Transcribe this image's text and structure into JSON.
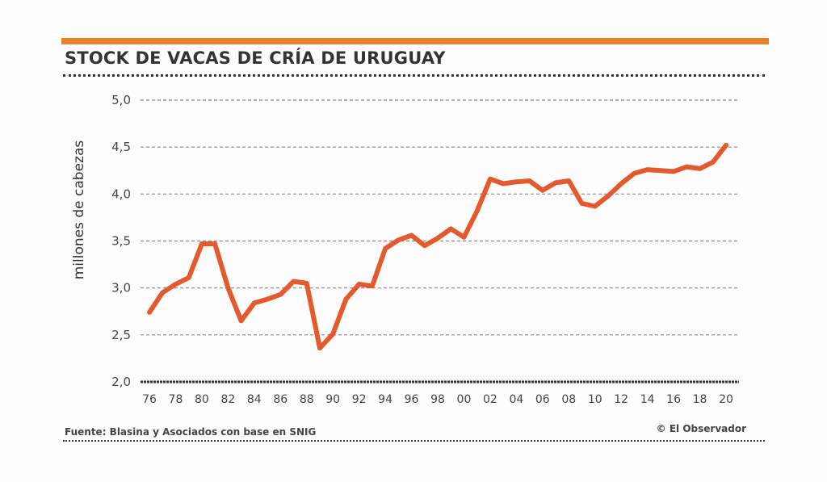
{
  "header": {
    "title": "STOCK DE VACAS DE CRÍA DE URUGUAY",
    "accent_color": "#e8822a"
  },
  "footer": {
    "source": "Fuente: Blasina y Asociados con base en SNIG",
    "credit": "© El Observador"
  },
  "chart_data": {
    "type": "line",
    "title": "STOCK DE VACAS DE CRÍA DE URUGUAY",
    "xlabel": "",
    "ylabel": "millones de cabezas",
    "ylim": [
      2.0,
      5.0
    ],
    "xlim": [
      1976,
      2020
    ],
    "grid": true,
    "line_color": "#e35a2e",
    "yticks": [
      "2,0",
      "2,5",
      "3,0",
      "3,5",
      "4,0",
      "4,5",
      "5,0"
    ],
    "ytick_values": [
      2.0,
      2.5,
      3.0,
      3.5,
      4.0,
      4.5,
      5.0
    ],
    "xticks": [
      "76",
      "78",
      "80",
      "82",
      "84",
      "86",
      "88",
      "90",
      "92",
      "94",
      "96",
      "98",
      "00",
      "02",
      "04",
      "06",
      "08",
      "10",
      "12",
      "14",
      "16",
      "18",
      "20"
    ],
    "xtick_values": [
      1976,
      1978,
      1980,
      1982,
      1984,
      1986,
      1988,
      1990,
      1992,
      1994,
      1996,
      1998,
      2000,
      2002,
      2004,
      2006,
      2008,
      2010,
      2012,
      2014,
      2016,
      2018,
      2020
    ],
    "series": [
      {
        "name": "Stock de vacas de cría",
        "x": [
          1976,
          1977,
          1978,
          1979,
          1980,
          1981,
          1982,
          1983,
          1984,
          1985,
          1986,
          1987,
          1988,
          1989,
          1990,
          1991,
          1992,
          1993,
          1994,
          1995,
          1996,
          1997,
          1998,
          1999,
          2000,
          2001,
          2002,
          2003,
          2004,
          2005,
          2006,
          2007,
          2008,
          2009,
          2010,
          2011,
          2012,
          2013,
          2014,
          2015,
          2016,
          2017,
          2018,
          2019,
          2020
        ],
        "values": [
          2.74,
          2.95,
          3.04,
          3.11,
          3.47,
          3.47,
          3.0,
          2.65,
          2.84,
          2.88,
          2.93,
          3.07,
          3.05,
          2.36,
          2.51,
          2.88,
          3.04,
          3.02,
          3.42,
          3.51,
          3.56,
          3.45,
          3.53,
          3.63,
          3.54,
          3.82,
          4.16,
          4.11,
          4.13,
          4.14,
          4.04,
          4.12,
          4.14,
          3.9,
          3.87,
          3.98,
          4.11,
          4.22,
          4.26,
          4.25,
          4.24,
          4.29,
          4.27,
          4.34,
          4.52
        ]
      }
    ]
  }
}
